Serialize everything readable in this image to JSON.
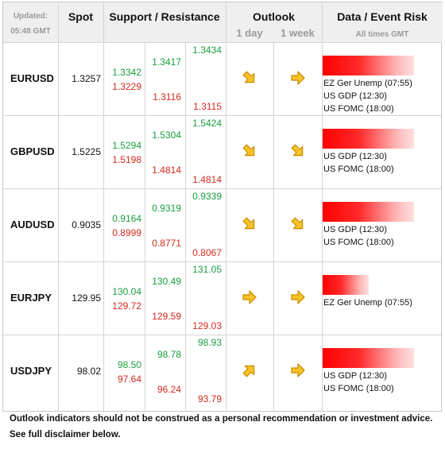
{
  "header": {
    "updated_label": "Updated:",
    "updated_time": "05:48 GMT",
    "spot": "Spot",
    "support_resistance": "Support / Resistance",
    "outlook": "Outlook",
    "outlook_1day": "1 day",
    "outlook_1week": "1 week",
    "data_event_risk": "Data / Event Risk",
    "all_times": "All times GMT"
  },
  "rows": [
    {
      "pair": "EURUSD",
      "spot": "1.3257",
      "r1": "1.3342",
      "s1": "1.3229",
      "r2": "1.3417",
      "s2": "1.3116",
      "r3": "1.3434",
      "s3": "1.3115",
      "outlook_1day": "down-right",
      "outlook_1week": "right",
      "risk_level": 0.9,
      "events": [
        "EZ Ger Unemp (07:55)",
        "US GDP (12:30)",
        "US FOMC (18:00)"
      ]
    },
    {
      "pair": "GBPUSD",
      "spot": "1.5225",
      "r1": "1.5294",
      "s1": "1.5198",
      "r2": "1.5304",
      "s2": "1.4814",
      "r3": "1.5424",
      "s3": "1.4814",
      "outlook_1day": "down-right",
      "outlook_1week": "down-right",
      "risk_level": 0.9,
      "events": [
        "US GDP (12:30)",
        "US FOMC (18:00)"
      ]
    },
    {
      "pair": "AUDUSD",
      "spot": "0.9035",
      "r1": "0.9164",
      "s1": "0.8999",
      "r2": "0.9319",
      "s2": "0.8771",
      "r3": "0.9339",
      "s3": "0.8067",
      "outlook_1day": "down-right",
      "outlook_1week": "down-right",
      "risk_level": 0.9,
      "events": [
        "US GDP (12:30)",
        "US FOMC (18:00)"
      ]
    },
    {
      "pair": "EURJPY",
      "spot": "129.95",
      "r1": "130.04",
      "s1": "129.72",
      "r2": "130.49",
      "s2": "129.59",
      "r3": "131.05",
      "s3": "129.03",
      "outlook_1day": "right",
      "outlook_1week": "right",
      "risk_level": 0.45,
      "events": [
        "EZ Ger Unemp (07:55)"
      ]
    },
    {
      "pair": "USDJPY",
      "spot": "98.02",
      "r1": "98.50",
      "s1": "97.64",
      "r2": "98.78",
      "s2": "96.24",
      "r3": "98.93",
      "s3": "93.79",
      "outlook_1day": "up-right",
      "outlook_1week": "right",
      "risk_level": 0.9,
      "events": [
        "US GDP (12:30)",
        "US FOMC (18:00)"
      ]
    }
  ],
  "footer": {
    "line1": "Outlook indicators should not be construed as a personal recommendation or investment advice.",
    "line2": "See full disclaimer below."
  },
  "colors": {
    "support": "#d22a1e",
    "resistance": "#1a9e3f",
    "arrow_fill": "#f7c325",
    "arrow_stroke": "#c98a00",
    "header_bg": "#efefef"
  }
}
